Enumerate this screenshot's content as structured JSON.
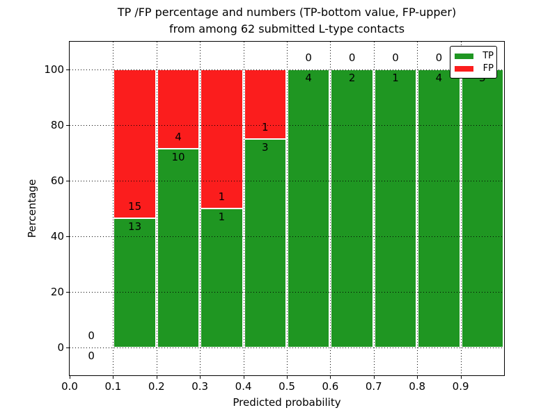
{
  "chart_data": {
    "type": "bar",
    "stacked": true,
    "normalized_to_percent": true,
    "title_lines": [
      "TP /FP percentage and numbers (TP-bottom value, FP-upper)",
      "from among 62 submitted L-type contacts"
    ],
    "xlabel": "Predicted probability",
    "ylabel": "Percentage",
    "xlim": [
      0.0,
      1.0
    ],
    "ylim": [
      -10,
      110
    ],
    "grid": true,
    "x_tick_values": [
      0.0,
      0.1,
      0.2,
      0.3,
      0.4,
      0.5,
      0.6,
      0.7,
      0.8,
      0.9
    ],
    "x_tick_labels": [
      "0.0",
      "0.1",
      "0.2",
      "0.3",
      "0.4",
      "0.5",
      "0.6",
      "0.7",
      "0.8",
      "0.9"
    ],
    "y_tick_values": [
      0,
      20,
      40,
      60,
      80,
      100
    ],
    "y_tick_labels": [
      "0",
      "20",
      "40",
      "60",
      "80",
      "100"
    ],
    "bin_width": 0.1,
    "bins": [
      {
        "x0": 0.0,
        "x1": 0.1,
        "tp": 0,
        "fp": 0
      },
      {
        "x0": 0.1,
        "x1": 0.2,
        "tp": 13,
        "fp": 15
      },
      {
        "x0": 0.2,
        "x1": 0.3,
        "tp": 10,
        "fp": 4
      },
      {
        "x0": 0.3,
        "x1": 0.4,
        "tp": 1,
        "fp": 1
      },
      {
        "x0": 0.4,
        "x1": 0.5,
        "tp": 3,
        "fp": 1
      },
      {
        "x0": 0.5,
        "x1": 0.6,
        "tp": 4,
        "fp": 0
      },
      {
        "x0": 0.6,
        "x1": 0.7,
        "tp": 2,
        "fp": 0
      },
      {
        "x0": 0.7,
        "x1": 0.8,
        "tp": 1,
        "fp": 0
      },
      {
        "x0": 0.8,
        "x1": 0.9,
        "tp": 4,
        "fp": 0
      },
      {
        "x0": 0.9,
        "x1": 1.0,
        "tp": 3,
        "fp": 0
      }
    ],
    "legend": {
      "position": "upper right",
      "items": [
        {
          "label": "TP",
          "color": "#1f9622"
        },
        {
          "label": "FP",
          "color": "#fb1d1d"
        }
      ]
    },
    "colors": {
      "tp": "#1f9622",
      "fp": "#fb1d1d",
      "bar_edge": "#ffffff",
      "grid": "#000000",
      "text": "#000000",
      "background": "#ffffff"
    }
  }
}
